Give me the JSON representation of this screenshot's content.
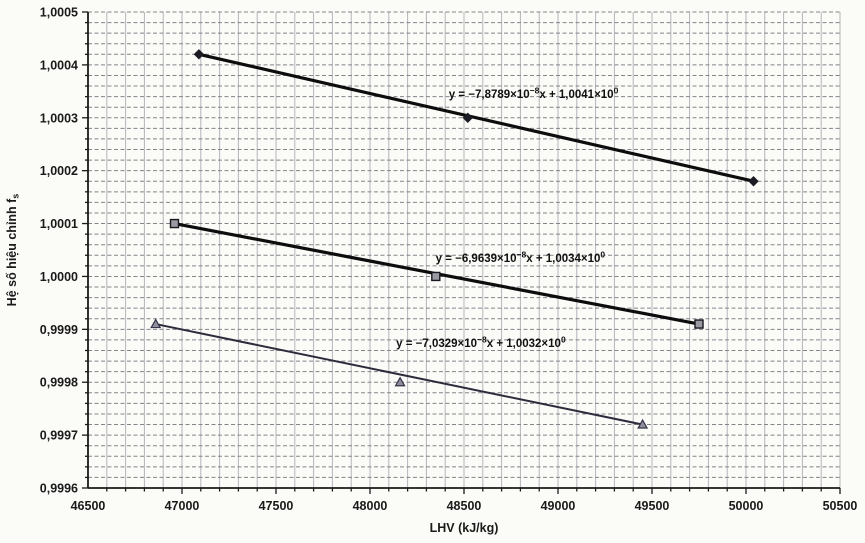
{
  "chart_data": {
    "type": "line",
    "title": "",
    "xlabel": "LHV (kJ/kg)",
    "ylabel": "Hệ số hiệu chỉnh f",
    "ylabel_sub": "s",
    "xlim": [
      46500,
      50500
    ],
    "ylim": [
      0.9996,
      1.0005
    ],
    "x_minor_step": 100,
    "x_major_step": 500,
    "y_minor_step": 2e-05,
    "y_major_step": 0.0001,
    "grid": {
      "vertical": "solid",
      "horizontal": "dashed"
    },
    "legend": "none",
    "x_ticks": [
      {
        "v": 46500,
        "label": "46500"
      },
      {
        "v": 47000,
        "label": "47000"
      },
      {
        "v": 47500,
        "label": "47500"
      },
      {
        "v": 48000,
        "label": "48000"
      },
      {
        "v": 48500,
        "label": "48500"
      },
      {
        "v": 49000,
        "label": "49000"
      },
      {
        "v": 49500,
        "label": "49500"
      },
      {
        "v": 50000,
        "label": "50000"
      },
      {
        "v": 50500,
        "label": "50500"
      }
    ],
    "y_ticks": [
      {
        "v": 1.0005,
        "label": "1,0005"
      },
      {
        "v": 1.0004,
        "label": "1,0004"
      },
      {
        "v": 1.0003,
        "label": "1,0003"
      },
      {
        "v": 1.0002,
        "label": "1,0002"
      },
      {
        "v": 1.0001,
        "label": "1,0001"
      },
      {
        "v": 1.0,
        "label": "1,0000"
      },
      {
        "v": 0.9999,
        "label": "0,9999"
      },
      {
        "v": 0.9998,
        "label": "0,9998"
      },
      {
        "v": 0.9997,
        "label": "0,9997"
      },
      {
        "v": 0.9996,
        "label": "0,9996"
      }
    ],
    "series": [
      {
        "name": "series-diamond",
        "marker": "diamond",
        "line_color": "#0d0d0d",
        "line_width": 3.2,
        "marker_fill": "#1c1c24",
        "marker_stroke": "#1c1c24",
        "points": [
          [
            47090,
            1.00042
          ],
          [
            48520,
            1.0003
          ],
          [
            50040,
            1.00018
          ]
        ],
        "equation": "y = −7,8789×10⁻⁸x + 1,0041×10⁰",
        "equation_pos": [
          48870,
          1.000337
        ]
      },
      {
        "name": "series-square",
        "marker": "square",
        "line_color": "#0d0d0d",
        "line_width": 3.2,
        "marker_fill": "#9a9aa2",
        "marker_stroke": "#18181f",
        "points": [
          [
            46960,
            1.0001
          ],
          [
            48350,
            1.0
          ],
          [
            49750,
            0.99991
          ]
        ],
        "equation": "y = −6,9639×10⁻⁸x + 1,0034×10⁰",
        "equation_pos": [
          48800,
          1.000027
        ]
      },
      {
        "name": "series-triangle",
        "marker": "triangle",
        "line_color": "#2c2c3c",
        "line_width": 2,
        "marker_fill": "#8f8f9e",
        "marker_stroke": "#34344a",
        "points": [
          [
            46860,
            0.99991
          ],
          [
            48160,
            0.9998
          ],
          [
            49450,
            0.99972
          ]
        ],
        "equation": "y = −7,0329×10⁻⁸x + 1,0032×10⁰",
        "equation_pos": [
          48590,
          0.999867
        ]
      }
    ],
    "colors": {
      "background": "#fbfbf8",
      "plot_background": "#fbfbf8",
      "grid_vertical": "#b5b5ba",
      "grid_horizontal": "#84848a",
      "axis": "#1a1a1a",
      "text": "#1a1a1a"
    }
  }
}
